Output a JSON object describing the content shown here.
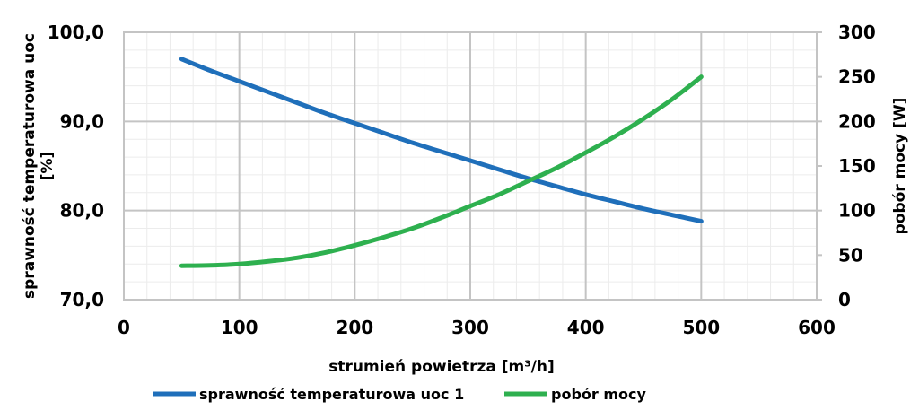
{
  "chart_data": {
    "type": "line",
    "title": "",
    "xlabel": "strumień powietrza [m³/h]",
    "ylabel_left_lines": [
      "sprawność temperaturowa uoc",
      "[%]"
    ],
    "ylabel_right": "pobór mocy [W]",
    "xlim": [
      0,
      600
    ],
    "ylim_left": [
      70,
      100
    ],
    "ylim_right": [
      0,
      300
    ],
    "x_ticks": [
      "0",
      "100",
      "200",
      "300",
      "400",
      "500",
      "600"
    ],
    "y_left_ticks": [
      "70,0",
      "80,0",
      "90,0",
      "100,0"
    ],
    "y_right_ticks": [
      "0",
      "50",
      "100",
      "150",
      "200",
      "250",
      "300"
    ],
    "grid": true,
    "legend_position": "bottom",
    "series": [
      {
        "name": "sprawność temperaturowa uoc 1",
        "axis": "left",
        "color": "#1f6fba",
        "x": [
          50,
          75,
          100,
          125,
          150,
          175,
          200,
          225,
          250,
          275,
          300,
          325,
          350,
          375,
          400,
          425,
          450,
          475,
          500
        ],
        "y": [
          97.0,
          95.7,
          94.5,
          93.3,
          92.1,
          90.9,
          89.8,
          88.7,
          87.6,
          86.6,
          85.6,
          84.6,
          83.6,
          82.7,
          81.8,
          81.0,
          80.2,
          79.5,
          78.8
        ]
      },
      {
        "name": "pobór mocy",
        "axis": "right",
        "color": "#2eb04f",
        "x": [
          50,
          75,
          100,
          125,
          150,
          175,
          200,
          225,
          250,
          275,
          300,
          325,
          350,
          375,
          400,
          425,
          450,
          475,
          500
        ],
        "y": [
          38,
          38.5,
          40,
          43,
          47,
          53,
          61,
          70,
          80,
          92,
          105,
          118,
          133,
          148,
          165,
          183,
          203,
          225,
          250
        ]
      }
    ]
  }
}
